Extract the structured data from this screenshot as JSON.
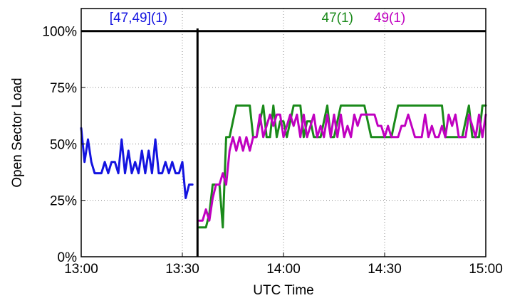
{
  "chart_data": {
    "type": "line",
    "xlabel": "UTC Time",
    "ylabel": "Open Sector Load",
    "x_unit": "minutes after 13:00 UTC",
    "xlim": [
      0,
      120
    ],
    "ylim": [
      0,
      110
    ],
    "grid": true,
    "x_ticks": [
      {
        "value": 0,
        "label": "13:00"
      },
      {
        "value": 30,
        "label": "13:30"
      },
      {
        "value": 60,
        "label": "14:00"
      },
      {
        "value": 90,
        "label": "14:30"
      },
      {
        "value": 120,
        "label": "15:00"
      }
    ],
    "y_ticks": [
      {
        "value": 0,
        "label": "0%"
      },
      {
        "value": 25,
        "label": "25%"
      },
      {
        "value": 50,
        "label": "50%"
      },
      {
        "value": 75,
        "label": "75%"
      },
      {
        "value": 100,
        "label": "100%"
      }
    ],
    "reference_line": {
      "y": 100
    },
    "split_line": {
      "x": 34.5
    },
    "annotations": [
      {
        "text": "[47,49](1)",
        "color": "#1414e0",
        "x": 17,
        "y": 104
      },
      {
        "text": "47(1)",
        "color": "#1a8a1a",
        "x": 76,
        "y": 104
      },
      {
        "text": "49(1)",
        "color": "#c000c0",
        "x": 91.5,
        "y": 104
      }
    ],
    "series": [
      {
        "key": "combined",
        "color": "#1414e0",
        "x": [
          0,
          1,
          2,
          3,
          4,
          5,
          6,
          7,
          8,
          9,
          10,
          11,
          12,
          13,
          14,
          15,
          16,
          17,
          18,
          19,
          20,
          21,
          22,
          23,
          24,
          25,
          26,
          27,
          28,
          29,
          30,
          31,
          32,
          33
        ],
        "y": [
          57,
          42,
          52,
          42,
          37,
          37,
          37,
          42,
          37,
          42,
          42,
          37,
          52,
          37,
          47,
          37,
          42,
          37,
          47,
          37,
          47,
          37,
          52,
          37,
          37,
          42,
          37,
          42,
          37,
          37,
          42,
          26,
          32,
          32
        ]
      },
      {
        "key": "s47",
        "color": "#1a8a1a",
        "x": [
          35,
          36,
          37,
          38,
          39,
          40,
          41,
          42,
          43,
          44,
          45,
          46,
          47,
          48,
          49,
          50,
          51,
          52,
          53,
          54,
          55,
          56,
          57,
          58,
          59,
          60,
          61,
          62,
          63,
          64,
          65,
          66,
          67,
          68,
          69,
          70,
          71,
          72,
          73,
          74,
          75,
          76,
          77,
          78,
          79,
          80,
          81,
          82,
          83,
          84,
          85,
          86,
          87,
          88,
          89,
          90,
          91,
          92,
          93,
          94,
          95,
          96,
          97,
          98,
          99,
          100,
          101,
          102,
          103,
          104,
          105,
          106,
          107,
          108,
          109,
          110,
          111,
          112,
          113,
          114,
          115,
          116,
          117,
          118,
          119,
          120
        ],
        "y": [
          13,
          13,
          13,
          19,
          32,
          32,
          32,
          13,
          53,
          53,
          60,
          67,
          67,
          67,
          67,
          67,
          53,
          53,
          60,
          67,
          53,
          53,
          67,
          53,
          60,
          60,
          53,
          60,
          67,
          67,
          67,
          53,
          60,
          60,
          53,
          53,
          53,
          60,
          67,
          53,
          53,
          60,
          67,
          67,
          67,
          67,
          67,
          67,
          67,
          67,
          60,
          53,
          53,
          53,
          53,
          53,
          53,
          53,
          60,
          67,
          67,
          67,
          67,
          67,
          67,
          67,
          67,
          67,
          67,
          67,
          67,
          67,
          67,
          53,
          53,
          53,
          53,
          53,
          53,
          60,
          67,
          53,
          53,
          53,
          67,
          67
        ]
      },
      {
        "key": "s49",
        "color": "#c000c0",
        "x": [
          35,
          36,
          37,
          38,
          39,
          40,
          41,
          42,
          43,
          44,
          45,
          46,
          47,
          48,
          49,
          50,
          51,
          52,
          53,
          54,
          55,
          56,
          57,
          58,
          59,
          60,
          61,
          62,
          63,
          64,
          65,
          66,
          67,
          68,
          69,
          70,
          71,
          72,
          73,
          74,
          75,
          76,
          77,
          78,
          79,
          80,
          81,
          82,
          83,
          84,
          85,
          86,
          87,
          88,
          89,
          90,
          91,
          92,
          93,
          94,
          95,
          96,
          97,
          98,
          99,
          100,
          101,
          102,
          103,
          104,
          105,
          106,
          107,
          108,
          109,
          110,
          111,
          112,
          113,
          114,
          115,
          116,
          117,
          118,
          119,
          120
        ],
        "y": [
          16,
          16,
          21,
          16,
          26,
          32,
          32,
          37,
          32,
          47,
          53,
          47,
          53,
          47,
          53,
          47,
          53,
          53,
          63,
          53,
          58,
          63,
          58,
          63,
          63,
          53,
          58,
          63,
          58,
          63,
          53,
          63,
          53,
          58,
          63,
          53,
          58,
          53,
          63,
          53,
          63,
          53,
          63,
          53,
          58,
          53,
          63,
          58,
          63,
          63,
          63,
          63,
          63,
          58,
          58,
          53,
          58,
          53,
          53,
          53,
          58,
          58,
          63,
          58,
          53,
          53,
          53,
          63,
          53,
          58,
          53,
          53,
          58,
          53,
          63,
          58,
          63,
          53,
          53,
          53,
          63,
          58,
          53,
          63,
          53,
          63
        ]
      }
    ]
  }
}
